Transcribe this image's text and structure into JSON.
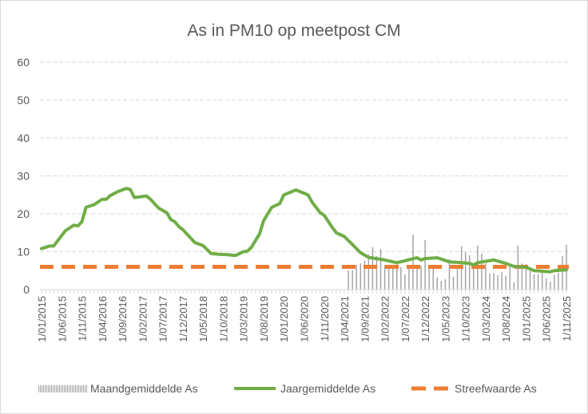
{
  "chart_data": {
    "type": "bar+line",
    "title": "As in PM10 op meetpost CM",
    "xlabel": "",
    "ylabel": "",
    "ylim": [
      0,
      60
    ],
    "yticks": [
      "0",
      "10",
      "20",
      "30",
      "40",
      "50",
      "60"
    ],
    "grid": true,
    "x_start": "2015-01",
    "x_end": "2025-11",
    "xtick_labels": [
      "1/01/2015",
      "1/06/2015",
      "1/11/2015",
      "1/04/2016",
      "1/09/2016",
      "1/02/2017",
      "1/07/2017",
      "1/12/2017",
      "1/05/2018",
      "1/10/2018",
      "1/03/2019",
      "1/08/2019",
      "1/01/2020",
      "1/06/2020",
      "1/11/2020",
      "1/04/2021",
      "1/09/2021",
      "1/02/2022",
      "1/07/2022",
      "1/12/2022",
      "1/05/2023",
      "1/10/2023",
      "1/03/2024",
      "1/08/2024",
      "1/01/2025",
      "1/06/2025",
      "1/11/2025"
    ],
    "legend_position": "bottom",
    "series": [
      {
        "name": "Maandgemiddelde As",
        "type": "bar",
        "color": "#a5a5a5",
        "start": "2021-05",
        "values": [
          5.1,
          5.1,
          6.5,
          6.9,
          7.6,
          9.3,
          11.2,
          8.8,
          10.7,
          6.5,
          6.5,
          6.3,
          7.4,
          5.9,
          4.0,
          5.9,
          14.5,
          6.5,
          6.3,
          13.1,
          6.5,
          6.3,
          3.2,
          2.3,
          2.7,
          8.0,
          3.4,
          6.5,
          11.4,
          9.9,
          9.1,
          6.9,
          11.6,
          9.5,
          6.9,
          4.2,
          4.4,
          3.8,
          4.6,
          3.6,
          6.3,
          1.9,
          11.6,
          6.9,
          6.7,
          5.1,
          4.0,
          4.0,
          4.4,
          2.9,
          2.1,
          3.8,
          4.4,
          8.8,
          11.8
        ]
      },
      {
        "name": "Jaargemiddelde As",
        "type": "line",
        "color": "#70ad47",
        "points": [
          [
            "2015-01",
            10.8
          ],
          [
            "2015-03",
            11.5
          ],
          [
            "2015-04",
            11.5
          ],
          [
            "2015-06",
            14.3
          ],
          [
            "2015-07",
            15.6
          ],
          [
            "2015-09",
            17.0
          ],
          [
            "2015-10",
            16.8
          ],
          [
            "2015-11",
            17.9
          ],
          [
            "2015-12",
            21.7
          ],
          [
            "2016-02",
            22.4
          ],
          [
            "2016-04",
            23.8
          ],
          [
            "2016-05",
            23.8
          ],
          [
            "2016-06",
            24.8
          ],
          [
            "2016-08",
            25.9
          ],
          [
            "2016-10",
            26.7
          ],
          [
            "2016-11",
            26.4
          ],
          [
            "2016-12",
            24.3
          ],
          [
            "2017-03",
            24.7
          ],
          [
            "2017-04",
            23.8
          ],
          [
            "2017-06",
            21.5
          ],
          [
            "2017-08",
            20.3
          ],
          [
            "2017-09",
            18.5
          ],
          [
            "2017-10",
            17.9
          ],
          [
            "2017-11",
            16.6
          ],
          [
            "2017-12",
            15.8
          ],
          [
            "2018-02",
            13.5
          ],
          [
            "2018-03",
            12.4
          ],
          [
            "2018-05",
            11.6
          ],
          [
            "2018-07",
            9.5
          ],
          [
            "2018-09",
            9.3
          ],
          [
            "2018-11",
            9.2
          ],
          [
            "2019-01",
            9.0
          ],
          [
            "2019-03",
            10.0
          ],
          [
            "2019-04",
            10.1
          ],
          [
            "2019-05",
            11.2
          ],
          [
            "2019-07",
            14.7
          ],
          [
            "2019-08",
            18.2
          ],
          [
            "2019-10",
            21.7
          ],
          [
            "2019-12",
            22.7
          ],
          [
            "2020-01",
            25.0
          ],
          [
            "2020-04",
            26.3
          ],
          [
            "2020-07",
            25.0
          ],
          [
            "2020-08",
            23.1
          ],
          [
            "2020-10",
            20.3
          ],
          [
            "2020-11",
            19.6
          ],
          [
            "2021-01",
            16.4
          ],
          [
            "2021-02",
            15.0
          ],
          [
            "2021-04",
            14.0
          ],
          [
            "2021-06",
            11.9
          ],
          [
            "2021-08",
            9.7
          ],
          [
            "2021-10",
            8.5
          ],
          [
            "2022-02",
            7.8
          ],
          [
            "2022-05",
            7.1
          ],
          [
            "2022-07",
            7.6
          ],
          [
            "2022-10",
            8.4
          ],
          [
            "2022-11",
            7.8
          ],
          [
            "2022-12",
            8.2
          ],
          [
            "2023-03",
            8.4
          ],
          [
            "2023-06",
            7.3
          ],
          [
            "2023-09",
            7.1
          ],
          [
            "2023-11",
            6.9
          ],
          [
            "2023-12",
            6.5
          ],
          [
            "2024-01",
            7.1
          ],
          [
            "2024-05",
            7.8
          ],
          [
            "2024-08",
            6.9
          ],
          [
            "2024-10",
            6.1
          ],
          [
            "2025-01",
            5.9
          ],
          [
            "2025-03",
            5.0
          ],
          [
            "2025-07",
            4.7
          ],
          [
            "2025-08",
            5.0
          ],
          [
            "2025-11",
            5.2
          ]
        ]
      },
      {
        "name": "Streefwaarde As",
        "type": "line-dashed",
        "color": "#ed7d31",
        "value": 6
      }
    ]
  }
}
